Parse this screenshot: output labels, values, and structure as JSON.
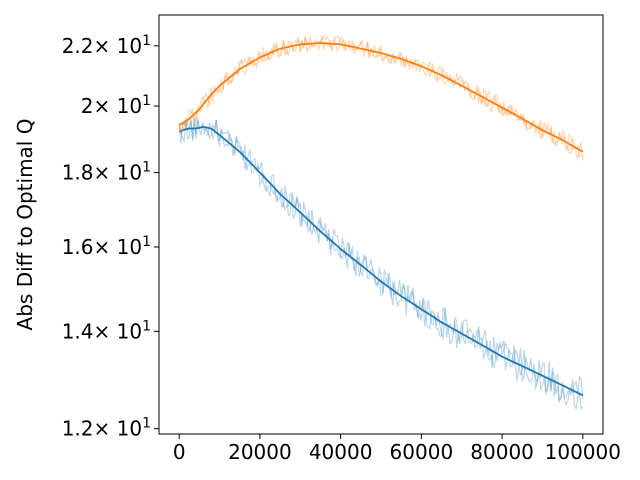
{
  "chart_data": {
    "type": "line",
    "title": "",
    "xlabel": "",
    "ylabel": "Abs Diff to Optimal Q",
    "yscale": "log",
    "xlim": [
      -5000,
      105000
    ],
    "ylim": [
      11.9,
      23.1
    ],
    "x_ticks": [
      {
        "value": 0,
        "label": "0"
      },
      {
        "value": 20000,
        "label": "20000"
      },
      {
        "value": 40000,
        "label": "40000"
      },
      {
        "value": 60000,
        "label": "60000"
      },
      {
        "value": 80000,
        "label": "80000"
      },
      {
        "value": 100000,
        "label": "100000"
      }
    ],
    "y_ticks": [
      {
        "value": 12,
        "mantissa": "1.2",
        "times": "× 10",
        "exponent": "1"
      },
      {
        "value": 14,
        "mantissa": "1.4",
        "times": "× 10",
        "exponent": "1"
      },
      {
        "value": 16,
        "mantissa": "1.6",
        "times": "× 10",
        "exponent": "1"
      },
      {
        "value": 18,
        "mantissa": "1.8",
        "times": "× 10",
        "exponent": "1"
      },
      {
        "value": 20,
        "mantissa": "2",
        "times": "× 10",
        "exponent": "1"
      },
      {
        "value": 22,
        "mantissa": "2.2",
        "times": "× 10",
        "exponent": "1"
      }
    ],
    "grid": false,
    "legend": "none",
    "series": [
      {
        "color": "#1f77b4",
        "band_color": "#1f77b4",
        "band_opacity": 0.3,
        "noise_amplitude": 0.38,
        "x": [
          0,
          2000,
          4000,
          6000,
          8000,
          10000,
          15000,
          20000,
          25000,
          30000,
          35000,
          40000,
          45000,
          50000,
          55000,
          60000,
          65000,
          70000,
          75000,
          80000,
          85000,
          90000,
          95000,
          100000
        ],
        "y": [
          19.2,
          19.3,
          19.3,
          19.35,
          19.3,
          19.1,
          18.6,
          18.0,
          17.4,
          16.9,
          16.4,
          15.95,
          15.55,
          15.15,
          14.8,
          14.5,
          14.2,
          13.95,
          13.7,
          13.45,
          13.25,
          13.05,
          12.85,
          12.65
        ]
      },
      {
        "color": "#ff7f0e",
        "band_color": "#ff7f0e",
        "band_opacity": 0.3,
        "noise_amplitude": 0.3,
        "x": [
          0,
          2500,
          5000,
          7500,
          10000,
          15000,
          20000,
          25000,
          30000,
          35000,
          40000,
          45000,
          50000,
          55000,
          60000,
          65000,
          70000,
          75000,
          80000,
          85000,
          90000,
          95000,
          100000
        ],
        "y": [
          19.4,
          19.6,
          19.9,
          20.3,
          20.65,
          21.2,
          21.6,
          21.9,
          22.05,
          22.1,
          22.05,
          21.9,
          21.75,
          21.55,
          21.3,
          21.0,
          20.65,
          20.3,
          19.95,
          19.6,
          19.25,
          18.95,
          18.6
        ]
      }
    ]
  }
}
